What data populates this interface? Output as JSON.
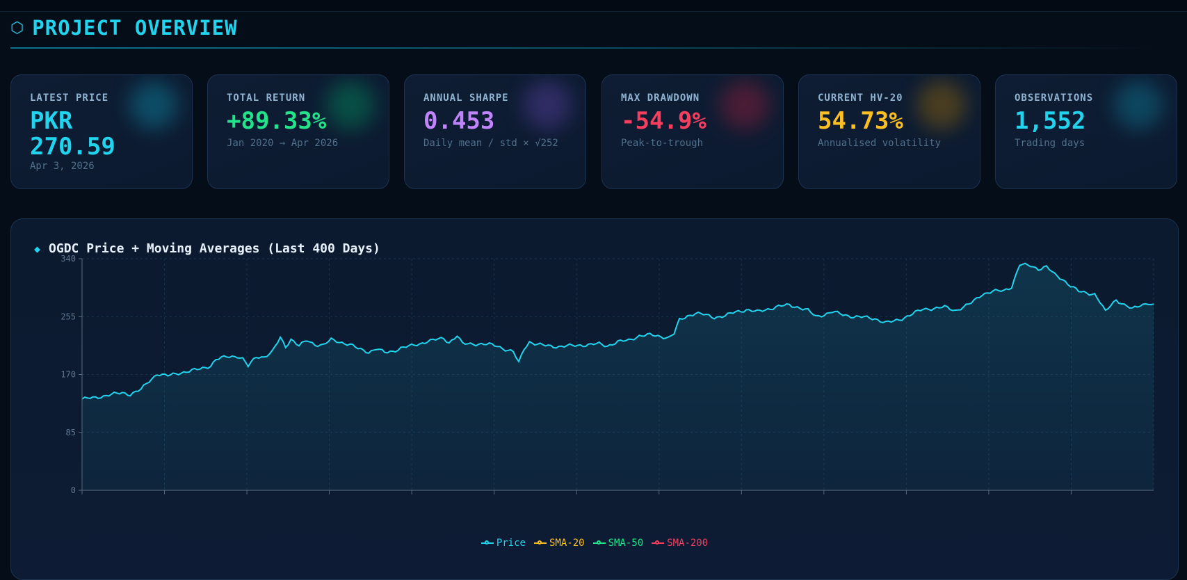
{
  "header": {
    "icon": "hexagon-icon",
    "title": "PROJECT OVERVIEW"
  },
  "cards": [
    {
      "label": "LATEST PRICE",
      "value_line1": "PKR",
      "value_line2": "270.59",
      "sub": "Apr 3, 2026",
      "color": "#22d3ee"
    },
    {
      "label": "TOTAL RETURN",
      "value": "+89.33%",
      "sub": "Jan 2020 → Apr 2026",
      "color": "#22e28a"
    },
    {
      "label": "ANNUAL SHARPE",
      "value": "0.453",
      "sub": "Daily mean / std × √252",
      "color": "#c084fc"
    },
    {
      "label": "MAX DRAWDOWN",
      "value": "-54.9%",
      "sub": "Peak-to-trough",
      "color": "#f43f5e"
    },
    {
      "label": "CURRENT HV-20",
      "value": "54.73%",
      "sub": "Annualised volatility",
      "color": "#fbbf24"
    },
    {
      "label": "OBSERVATIONS",
      "value": "1,552",
      "sub": "Trading days",
      "color": "#22d3ee"
    }
  ],
  "chart_panel": {
    "icon": "diamond-icon",
    "title": "OGDC Price + Moving Averages (Last 400 Days)"
  },
  "chart_data": {
    "type": "line",
    "title": "OGDC Price + Moving Averages (Last 400 Days)",
    "ylim": [
      0,
      340
    ],
    "yticks": [
      "0",
      "85",
      "170",
      "255",
      "340"
    ],
    "x_count": 400,
    "grid": true,
    "legend_position": "bottom",
    "legend": [
      {
        "name": "Price",
        "color": "#22d3ee"
      },
      {
        "name": "SMA-20",
        "color": "#fbbf24"
      },
      {
        "name": "SMA-50",
        "color": "#22e28a"
      },
      {
        "name": "SMA-200",
        "color": "#f43f5e"
      }
    ],
    "series": [
      {
        "name": "Price",
        "color": "#22d3ee",
        "keypoints": [
          [
            0,
            134
          ],
          [
            5,
            136
          ],
          [
            10,
            140
          ],
          [
            15,
            143
          ],
          [
            18,
            141
          ],
          [
            22,
            148
          ],
          [
            25,
            160
          ],
          [
            28,
            171
          ],
          [
            32,
            168
          ],
          [
            36,
            172
          ],
          [
            40,
            175
          ],
          [
            44,
            178
          ],
          [
            48,
            183
          ],
          [
            50,
            192
          ],
          [
            54,
            196
          ],
          [
            58,
            197
          ],
          [
            60,
            193
          ],
          [
            62,
            182
          ],
          [
            65,
            196
          ],
          [
            68,
            196
          ],
          [
            71,
            203
          ],
          [
            74,
            224
          ],
          [
            76,
            211
          ],
          [
            78,
            222
          ],
          [
            81,
            212
          ],
          [
            84,
            220
          ],
          [
            87,
            214
          ],
          [
            90,
            213
          ],
          [
            93,
            221
          ],
          [
            96,
            218
          ],
          [
            100,
            214
          ],
          [
            103,
            208
          ],
          [
            107,
            203
          ],
          [
            110,
            208
          ],
          [
            113,
            202
          ],
          [
            116,
            204
          ],
          [
            119,
            209
          ],
          [
            123,
            212
          ],
          [
            126,
            215
          ],
          [
            129,
            219
          ],
          [
            132,
            221
          ],
          [
            135,
            223
          ],
          [
            137,
            217
          ],
          [
            140,
            227
          ],
          [
            142,
            215
          ],
          [
            145,
            215
          ],
          [
            148,
            215
          ],
          [
            152,
            214
          ],
          [
            155,
            212
          ],
          [
            158,
            207
          ],
          [
            161,
            203
          ],
          [
            163,
            187
          ],
          [
            165,
            208
          ],
          [
            167,
            218
          ],
          [
            170,
            214
          ],
          [
            174,
            212
          ],
          [
            178,
            211
          ],
          [
            182,
            212
          ],
          [
            186,
            213
          ],
          [
            190,
            214
          ],
          [
            193,
            215
          ],
          [
            196,
            212
          ],
          [
            200,
            218
          ],
          [
            204,
            220
          ],
          [
            208,
            227
          ],
          [
            212,
            228
          ],
          [
            216,
            226
          ],
          [
            219,
            224
          ],
          [
            221,
            230
          ],
          [
            223,
            250
          ],
          [
            226,
            256
          ],
          [
            229,
            260
          ],
          [
            232,
            258
          ],
          [
            236,
            254
          ],
          [
            240,
            256
          ],
          [
            244,
            262
          ],
          [
            248,
            265
          ],
          [
            252,
            262
          ],
          [
            256,
            266
          ],
          [
            260,
            270
          ],
          [
            264,
            272
          ],
          [
            268,
            268
          ],
          [
            271,
            264
          ],
          [
            274,
            255
          ],
          [
            277,
            258
          ],
          [
            280,
            262
          ],
          [
            284,
            258
          ],
          [
            288,
            255
          ],
          [
            292,
            254
          ],
          [
            296,
            252
          ],
          [
            300,
            246
          ],
          [
            303,
            248
          ],
          [
            306,
            252
          ],
          [
            310,
            259
          ],
          [
            314,
            266
          ],
          [
            318,
            267
          ],
          [
            322,
            269
          ],
          [
            326,
            264
          ],
          [
            329,
            269
          ],
          [
            332,
            275
          ],
          [
            336,
            288
          ],
          [
            340,
            292
          ],
          [
            344,
            293
          ],
          [
            347,
            299
          ],
          [
            350,
            331
          ],
          [
            354,
            330
          ],
          [
            357,
            325
          ],
          [
            360,
            328
          ],
          [
            363,
            317
          ],
          [
            366,
            310
          ],
          [
            369,
            300
          ],
          [
            372,
            292
          ],
          [
            375,
            290
          ],
          [
            378,
            288
          ],
          [
            380,
            276
          ],
          [
            382,
            262
          ],
          [
            384,
            272
          ],
          [
            386,
            280
          ],
          [
            389,
            272
          ],
          [
            392,
            266
          ],
          [
            395,
            272
          ],
          [
            398,
            275
          ],
          [
            400,
            271
          ]
        ]
      }
    ]
  }
}
